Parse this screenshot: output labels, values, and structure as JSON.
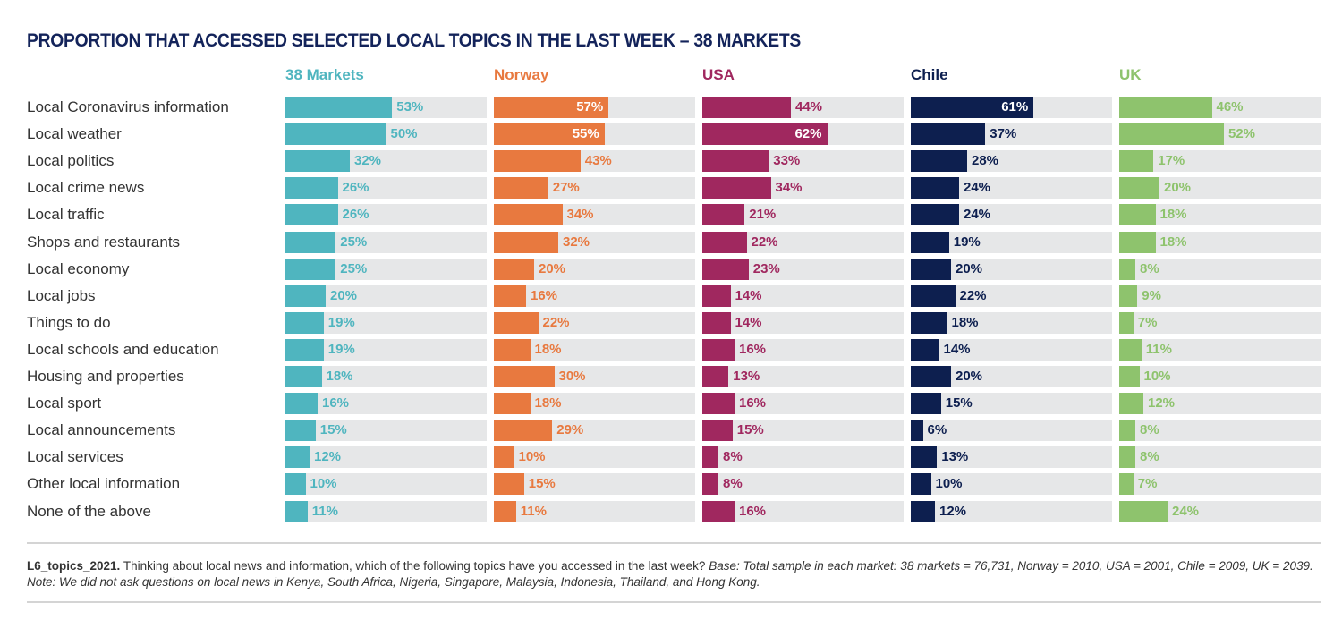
{
  "chart_data": {
    "type": "bar",
    "orientation": "horizontal",
    "title": "PROPORTION THAT ACCESSED SELECTED LOCAL TOPICS IN THE LAST WEEK – 38 MARKETS",
    "unit": "%",
    "xlim": [
      0,
      100
    ],
    "grid": false,
    "categories": [
      "Local Coronavirus information",
      "Local weather",
      "Local politics",
      "Local crime news",
      "Local traffic",
      "Shops and restaurants",
      "Local economy",
      "Local jobs",
      "Things to do",
      "Local schools and education",
      "Housing and properties",
      "Local sport",
      "Local announcements",
      "Local services",
      "Other local information",
      "None of the above"
    ],
    "series": [
      {
        "name": "38 Markets",
        "color": "#4fb5bf",
        "values": [
          53,
          50,
          32,
          26,
          26,
          25,
          25,
          20,
          19,
          19,
          18,
          16,
          15,
          12,
          10,
          11
        ]
      },
      {
        "name": "Norway",
        "color": "#e8793f",
        "values": [
          57,
          55,
          43,
          27,
          34,
          32,
          20,
          16,
          22,
          18,
          30,
          18,
          29,
          10,
          15,
          11
        ]
      },
      {
        "name": "USA",
        "color": "#a0285f",
        "values": [
          44,
          62,
          33,
          34,
          21,
          22,
          23,
          14,
          14,
          16,
          13,
          16,
          15,
          8,
          8,
          16
        ]
      },
      {
        "name": "Chile",
        "color": "#0d1f4f",
        "values": [
          61,
          37,
          28,
          24,
          24,
          19,
          20,
          22,
          18,
          14,
          20,
          15,
          6,
          13,
          10,
          12
        ]
      },
      {
        "name": "UK",
        "color": "#8ec36d",
        "values": [
          46,
          52,
          17,
          20,
          18,
          18,
          8,
          9,
          7,
          11,
          10,
          12,
          8,
          8,
          7,
          24
        ]
      }
    ]
  },
  "footnote": {
    "code": "L6_topics_2021.",
    "question": " Thinking about local news and information, which of the following topics have you accessed in the last week? ",
    "base": "Base: Total sample in each market: 38 markets = 76,731, Norway = 2010, USA = 2001, Chile = 2009, UK = 2039. Note: We did not ask questions on local news in Kenya, South Africa, Nigeria, Singapore, Malaysia, Indonesia, Thailand, and Hong Kong."
  },
  "colors": {
    "title": "#13235a",
    "track": "#e6e7e8"
  }
}
